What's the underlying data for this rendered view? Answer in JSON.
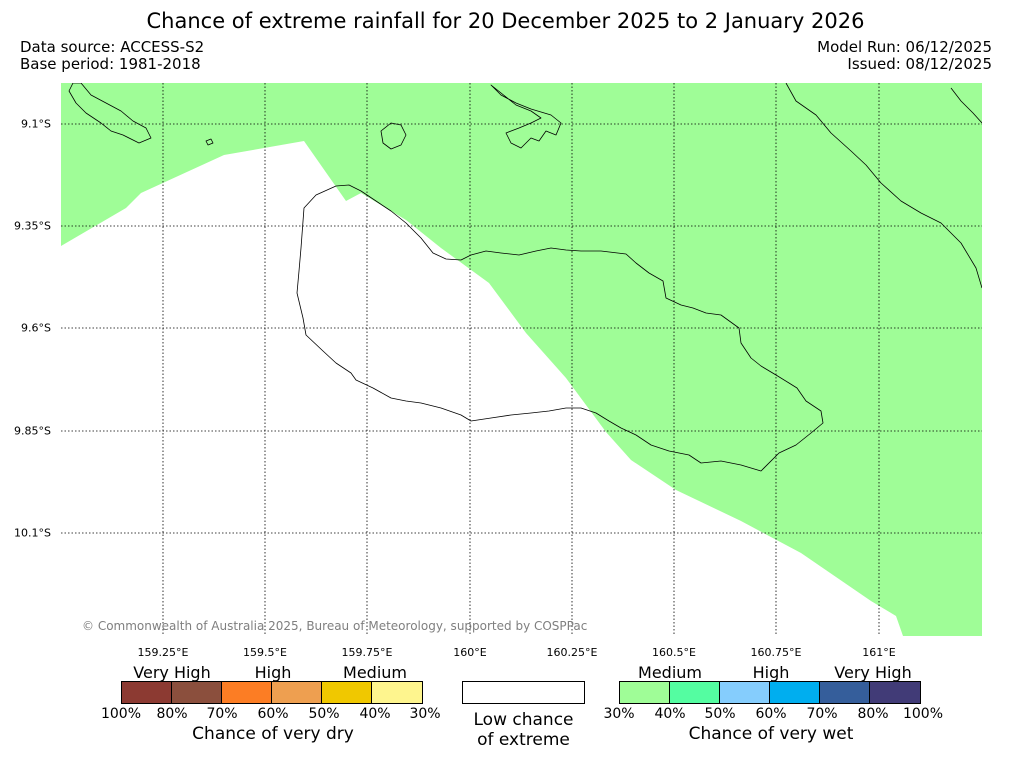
{
  "header": {
    "title": "Chance of extreme rainfall for 20 December 2025 to 2 January 2026",
    "data_source": "Data source: ACCESS-S2",
    "base_period": "Base period: 1981-2018",
    "model_run": "Model Run: 06/12/2025",
    "issued": "Issued: 08/12/2025"
  },
  "map": {
    "lat_labels": [
      "9.1°S",
      "9.35°S",
      "9.6°S",
      "9.85°S",
      "10.1°S"
    ],
    "lon_labels": [
      "159.25°E",
      "159.5°E",
      "159.75°E",
      "160°E",
      "160.25°E",
      "160.5°E",
      "160.75°E",
      "161°E"
    ],
    "shading_color": "#9ffd97",
    "copyright": "© Commonwealth of Australia 2025, Bureau of Meteorology, supported by COSPPac"
  },
  "legend": {
    "dry": {
      "title": "Chance of very dry",
      "categories": [
        "Very High",
        "High",
        "Medium"
      ],
      "ticks": [
        "100%",
        "80%",
        "70%",
        "60%",
        "50%",
        "40%",
        "30%"
      ],
      "colors": [
        "#8c3a32",
        "#8b4f3d",
        "#fc7d24",
        "#ee9f50",
        "#f0c800",
        "#fef58e"
      ]
    },
    "neutral": {
      "line1": "Low chance",
      "line2": "of extreme"
    },
    "wet": {
      "title": "Chance of very wet",
      "categories": [
        "Medium",
        "High",
        "Very High"
      ],
      "ticks": [
        "30%",
        "40%",
        "50%",
        "60%",
        "70%",
        "80%",
        "100%"
      ],
      "colors": [
        "#9ffd97",
        "#54fda1",
        "#85cdfd",
        "#00aeef",
        "#355e9b",
        "#413b77"
      ]
    }
  }
}
